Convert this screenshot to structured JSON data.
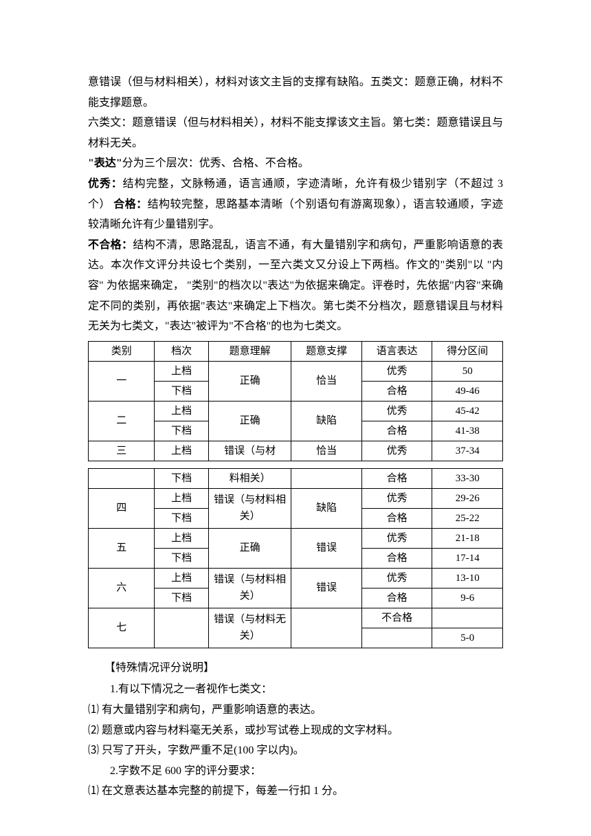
{
  "paragraphs": {
    "p1": "意错误（但与材料相关），材料对该文主旨的支撑有缺陷。五类文：题意正确，材料不能支撑题意。",
    "p2": "六类文：题意错误（但与材料相关），材料不能支撑该文主旨。第七类：题意错误且与材料无关。",
    "p3a": "\"表达\"",
    "p3b": "分为三个层次：优秀、合格、不合格。",
    "p4a": "优秀：",
    "p4b": "结构完整，文脉畅通，语言通顺，字迹清晰，允许有极少错别字（不超过 3 个）  ",
    "p4c": "合格：",
    "p4d": "结构较完整，思路基本清晰（个别语句有游离现象），语言较通顺，字迹较清晰允许有少量错别字。",
    "p5a": "不合格：",
    "p5b": "结构不清，思路混乱，语言不通，有大量错别字和病句，严重影响语意的表达。本次作文评分共设七个类别，一至六类文又分设上下两档。作文的\"类别\"以 \"内容\" 为依据来确定， \"类别\"的档次以\"表达\"为依据来确定。评卷时，先依据\"内容\"来确定不同的类别，再依据\"表达\"来确定上下档次。第七类不分档次，题意错误且与材料无关为七类文，\"表达\"被评为\"不合格\"的也为七类文。"
  },
  "table1": {
    "headers": [
      "类别",
      "档次",
      "题意理解",
      "题意支撑",
      "语言表达",
      "得分区间"
    ],
    "groups": [
      {
        "cat": "一",
        "tiyi": "正确",
        "zhicheng": "恰当",
        "rows": [
          {
            "dang": "上档",
            "biaoda": "优秀",
            "score": "50"
          },
          {
            "dang": "下档",
            "biaoda": "合格",
            "score": "49-46"
          }
        ]
      },
      {
        "cat": "二",
        "tiyi": "正确",
        "zhicheng": "缺陷",
        "rows": [
          {
            "dang": "上档",
            "biaoda": "优秀",
            "score": "45-42"
          },
          {
            "dang": "下档",
            "biaoda": "合格",
            "score": "41-38"
          }
        ]
      }
    ],
    "partial": {
      "cat": "三",
      "dang": "上档",
      "tiyi": "错误（与材",
      "zhicheng": "恰当",
      "biaoda": "优秀",
      "score": "37-34"
    }
  },
  "table2": {
    "row3b": {
      "dang": "下档",
      "tiyi": "料相关）",
      "biaoda": "合格",
      "score": "33-30"
    },
    "groups": [
      {
        "cat": "四",
        "tiyi": "错误（与材料相关）",
        "zhicheng": "缺陷",
        "rows": [
          {
            "dang": "上档",
            "biaoda": "优秀",
            "score": "29-26"
          },
          {
            "dang": "下档",
            "biaoda": "合格",
            "score": "25-22"
          }
        ]
      },
      {
        "cat": "五",
        "tiyi": "正确",
        "zhicheng": "错误",
        "rows": [
          {
            "dang": "上档",
            "biaoda": "优秀",
            "score": "21-18"
          },
          {
            "dang": "下档",
            "biaoda": "合格",
            "score": "17-14"
          }
        ]
      },
      {
        "cat": "六",
        "tiyi": "错误（与材料相关）",
        "zhicheng": "错误",
        "rows": [
          {
            "dang": "上档",
            "biaoda": "优秀",
            "score": "13-10"
          },
          {
            "dang": "下档",
            "biaoda": "合格",
            "score": "9-6"
          }
        ]
      }
    ],
    "seven": {
      "cat": "七",
      "tiyi": "错误（与材料无关）",
      "zhicheng": "",
      "biaoda": "不合格",
      "score": "5-0"
    }
  },
  "special": {
    "title": "【特殊情况评分说明】",
    "item1": "1.有以下情况之一者视作七类文：",
    "s1": "⑴  有大量错别字和病句，严重影响语意的表达。",
    "s2": "⑵  题意或内容与材料毫无关系，或抄写试卷上现成的文字材料。",
    "s3": "⑶  只写了开头，字数严重不足(100 字以内)。",
    "item2": "2.字数不足 600 字的评分要求：",
    "s4": "⑴  在文意表达基本完整的前提下，每差一行扣 1 分。"
  }
}
